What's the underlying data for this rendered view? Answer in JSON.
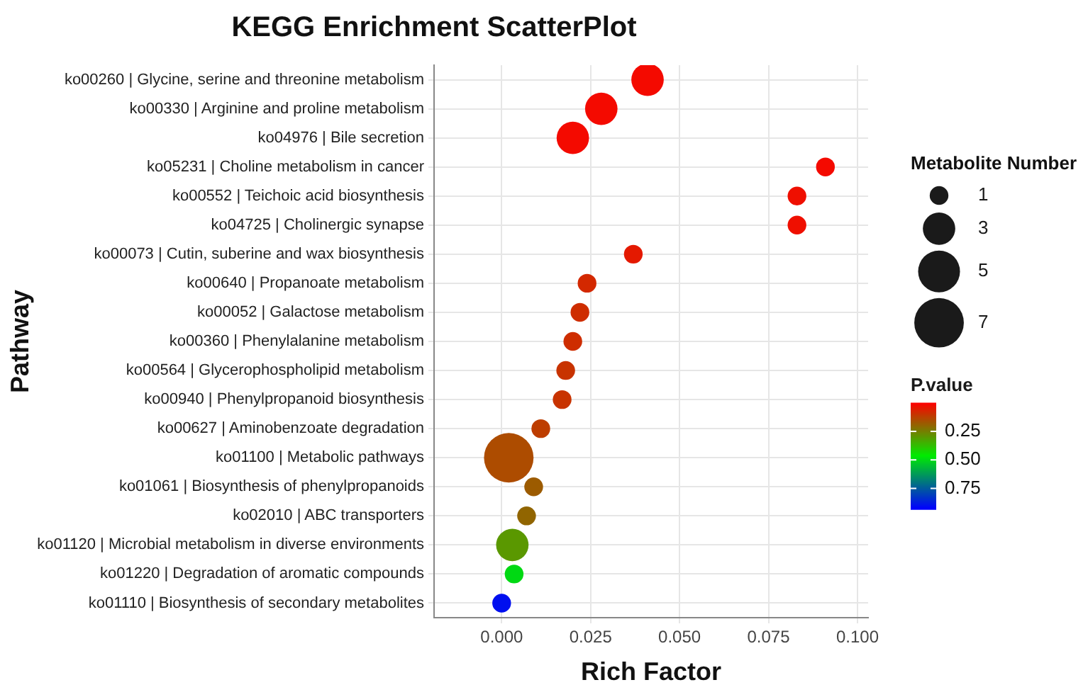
{
  "chart_data": {
    "type": "bubble",
    "title": "KEGG Enrichment ScatterPlot",
    "xlabel": "Rich Factor",
    "ylabel": "Pathway",
    "legend_title": "Metabolite Number",
    "clabel": "P.value",
    "orientation": "horizontal",
    "categories": [
      "ko00260 | Glycine, serine and threonine metabolism",
      "ko00330 | Arginine and proline metabolism",
      "ko04976 | Bile secretion",
      "ko05231 | Choline metabolism in cancer",
      "ko00552 | Teichoic acid biosynthesis",
      "ko04725 | Cholinergic synapse",
      "ko00073 | Cutin, suberine and wax biosynthesis",
      "ko00640 | Propanoate metabolism",
      "ko00052 | Galactose metabolism",
      "ko00360 | Phenylalanine metabolism",
      "ko00564 | Glycerophospholipid metabolism",
      "ko00940 | Phenylpropanoid biosynthesis",
      "ko00627 | Aminobenzoate degradation",
      "ko01100 | Metabolic pathways",
      "ko01061 | Biosynthesis of phenylpropanoids",
      "ko02010 | ABC transporters",
      "ko01120 | Microbial metabolism in diverse environments",
      "ko01220 | Degradation of aromatic compounds",
      "ko01110 | Biosynthesis of secondary metabolites"
    ],
    "values": [
      0.041,
      0.028,
      0.02,
      0.091,
      0.083,
      0.083,
      0.037,
      0.024,
      0.022,
      0.02,
      0.018,
      0.017,
      0.011,
      0.002,
      0.009,
      0.007,
      0.003,
      0.0035,
      0.0
    ],
    "sizes": [
      3,
      3,
      3,
      1,
      1,
      1,
      1,
      1,
      1,
      1,
      1,
      1,
      1,
      7,
      1,
      1,
      3,
      1,
      1
    ],
    "cvalues": [
      0.02,
      0.02,
      0.02,
      0.02,
      0.03,
      0.03,
      0.05,
      0.08,
      0.09,
      0.09,
      0.1,
      0.1,
      0.12,
      0.15,
      0.18,
      0.2,
      0.3,
      0.5,
      0.9
    ],
    "size_legend": [
      1,
      3,
      5,
      7
    ],
    "clim": [
      0,
      0.93
    ],
    "cticks": [
      {
        "value": 0.25,
        "label": "0.25"
      },
      {
        "value": 0.5,
        "label": "0.50"
      },
      {
        "value": 0.75,
        "label": "0.75"
      }
    ],
    "xlim": [
      -0.019,
      0.103
    ],
    "xticks": [
      {
        "value": 0,
        "label": "0.000"
      },
      {
        "value": 0.025,
        "label": "0.025"
      },
      {
        "value": 0.05,
        "label": "0.050"
      },
      {
        "value": 0.075,
        "label": "0.075"
      },
      {
        "value": 0.1,
        "label": "0.100"
      }
    ],
    "grid": true
  }
}
